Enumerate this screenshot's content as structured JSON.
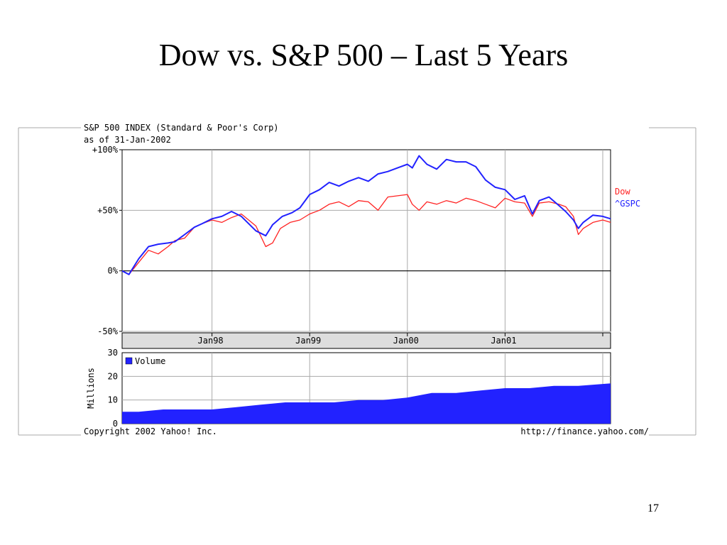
{
  "slide": {
    "title": "Dow vs. S&P 500 – Last 5 Years",
    "page_number": "17"
  },
  "chart_data": {
    "type": "line",
    "header": [
      "S&P 500 INDEX (Standard & Poor's Corp)",
      "as of 31-Jan-2002"
    ],
    "ylim": [
      -50,
      100
    ],
    "yticks": [
      "+100%",
      "+50%",
      "0%",
      "-50%"
    ],
    "x_range": [
      1997.08,
      2002.08
    ],
    "xticks": [
      {
        "label": "Jan98",
        "x": 1998.0
      },
      {
        "label": "Jan99",
        "x": 1999.0
      },
      {
        "label": "Jan00",
        "x": 2000.0
      },
      {
        "label": "Jan01",
        "x": 2001.0
      },
      {
        "label": "",
        "x": 2002.0
      }
    ],
    "series": [
      {
        "name": "Dow",
        "color": "#ff2222",
        "x": [
          1997.08,
          1997.15,
          1997.25,
          1997.35,
          1997.45,
          1997.55,
          1997.62,
          1997.72,
          1997.82,
          1997.9,
          1998.0,
          1998.1,
          1998.2,
          1998.3,
          1998.45,
          1998.55,
          1998.62,
          1998.7,
          1998.8,
          1998.9,
          1999.0,
          1999.1,
          1999.2,
          1999.3,
          1999.4,
          1999.5,
          1999.6,
          1999.7,
          1999.8,
          1999.9,
          2000.0,
          2000.05,
          2000.12,
          2000.2,
          2000.3,
          2000.4,
          2000.5,
          2000.6,
          2000.7,
          2000.8,
          2000.9,
          2001.0,
          2001.1,
          2001.2,
          2001.28,
          2001.35,
          2001.45,
          2001.55,
          2001.62,
          2001.7,
          2001.75,
          2001.8,
          2001.9,
          2002.0,
          2002.08
        ],
        "y": [
          0,
          -3,
          7,
          17,
          14,
          20,
          25,
          27,
          36,
          39,
          42,
          40,
          44,
          47,
          37,
          20,
          23,
          35,
          40,
          42,
          47,
          50,
          55,
          57,
          53,
          58,
          57,
          50,
          61,
          62,
          63,
          55,
          50,
          57,
          55,
          58,
          56,
          60,
          58,
          55,
          52,
          60,
          57,
          56,
          45,
          56,
          57,
          55,
          53,
          45,
          30,
          35,
          40,
          42,
          40
        ]
      },
      {
        "name": "^GSPC",
        "color": "#2222ff",
        "x": [
          1997.08,
          1997.15,
          1997.25,
          1997.35,
          1997.45,
          1997.55,
          1997.62,
          1997.72,
          1997.82,
          1997.9,
          1998.0,
          1998.1,
          1998.2,
          1998.3,
          1998.45,
          1998.55,
          1998.62,
          1998.72,
          1998.82,
          1998.9,
          1999.0,
          1999.1,
          1999.2,
          1999.3,
          1999.4,
          1999.5,
          1999.6,
          1999.7,
          1999.8,
          1999.9,
          2000.0,
          2000.05,
          2000.12,
          2000.2,
          2000.3,
          2000.4,
          2000.5,
          2000.6,
          2000.7,
          2000.8,
          2000.9,
          2001.0,
          2001.1,
          2001.2,
          2001.28,
          2001.35,
          2001.45,
          2001.55,
          2001.62,
          2001.7,
          2001.75,
          2001.8,
          2001.9,
          2002.0,
          2002.08
        ],
        "y": [
          0,
          -3,
          10,
          20,
          22,
          23,
          24,
          30,
          36,
          39,
          43,
          45,
          49,
          45,
          33,
          29,
          38,
          45,
          48,
          52,
          63,
          67,
          73,
          70,
          74,
          77,
          74,
          80,
          82,
          85,
          88,
          85,
          95,
          88,
          84,
          92,
          90,
          90,
          86,
          75,
          69,
          67,
          59,
          62,
          47,
          58,
          61,
          54,
          49,
          42,
          35,
          40,
          46,
          45,
          43
        ]
      }
    ],
    "volume": {
      "legend": "Volume",
      "ylabel": "Millions",
      "color": "#2222ff",
      "ylim": [
        0,
        30
      ],
      "yticks": [
        "30",
        "20",
        "10",
        "0"
      ],
      "x": [
        1997.08,
        1997.25,
        1997.5,
        1997.75,
        1998.0,
        1998.25,
        1998.5,
        1998.75,
        1999.0,
        1999.25,
        1999.5,
        1999.75,
        2000.0,
        2000.25,
        2000.5,
        2000.75,
        2001.0,
        2001.25,
        2001.5,
        2001.75,
        2002.08
      ],
      "y": [
        5,
        5,
        6,
        6,
        6,
        7,
        8,
        9,
        9,
        9,
        10,
        10,
        11,
        13,
        13,
        14,
        15,
        15,
        16,
        16,
        17
      ]
    },
    "footer": {
      "copyright": "Copyright 2002 Yahoo! Inc.",
      "source": "http://finance.yahoo.com/"
    }
  }
}
